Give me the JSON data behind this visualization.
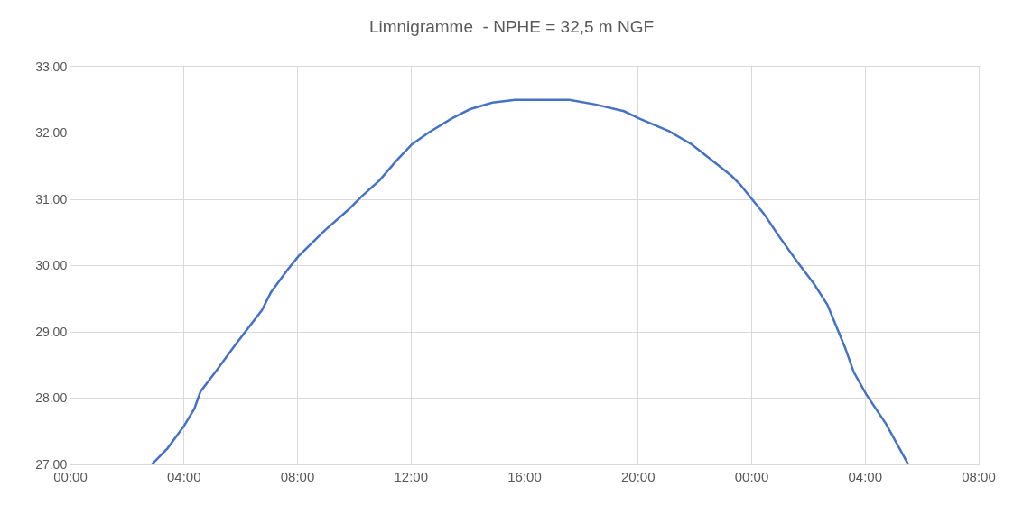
{
  "chart_data": {
    "type": "line",
    "title": "Limnigramme  - NPHE = 32,5 m NGF",
    "x": [
      "--01-01T02:52",
      "--01-01T03:25",
      "--01-01T04:00",
      "--01-01T04:22",
      "--01-01T04:35",
      "--01-01T05:10",
      "--01-01T05:48",
      "--01-01T06:45",
      "--01-01T07:04",
      "--01-01T07:38",
      "--01-01T08:02",
      "--01-01T08:59",
      "--01-01T09:47",
      "--01-01T10:15",
      "--01-01T10:54",
      "--01-01T11:30",
      "--01-01T12:02",
      "--01-01T12:38",
      "--01-01T13:26",
      "--01-01T14:05",
      "--01-01T14:52",
      "--01-01T15:40",
      "--01-01T17:35",
      "--01-01T18:30",
      "--01-01T19:30",
      "--01-01T20:02",
      "--01-01T21:05",
      "--01-01T21:53",
      "--01-01T22:41",
      "--01-01T23:18",
      "--01-01T23:36",
      "--01-02T00:02",
      "--01-02T00:26",
      "--01-02T00:58",
      "--01-02T01:36",
      "--01-02T02:11",
      "--01-02T02:40",
      "--01-02T03:17",
      "--01-02T03:36",
      "--01-02T04:02",
      "--01-02T04:44",
      "--01-02T05:31"
    ],
    "series": [
      {
        "color": "#4472c4",
        "values": [
          27.0,
          27.24,
          27.58,
          27.84,
          28.1,
          28.43,
          28.8,
          29.33,
          29.6,
          29.93,
          30.14,
          30.54,
          30.84,
          31.04,
          31.29,
          31.59,
          31.83,
          32.01,
          32.22,
          32.36,
          32.46,
          32.5,
          32.5,
          32.43,
          32.33,
          32.22,
          32.03,
          31.83,
          31.56,
          31.35,
          31.22,
          30.99,
          30.78,
          30.44,
          30.06,
          29.73,
          29.41,
          28.77,
          28.39,
          28.06,
          27.61,
          27.0
        ]
      }
    ],
    "xlim": [
      "--01-01T00:00",
      "--01-02T08:00"
    ],
    "xticks": [
      {
        "value": "--01-01T00:00",
        "label": "00:00"
      },
      {
        "value": "--01-01T04:00",
        "label": "04:00"
      },
      {
        "value": "--01-01T08:00",
        "label": "08:00"
      },
      {
        "value": "--01-01T12:00",
        "label": "12:00"
      },
      {
        "value": "--01-01T16:00",
        "label": "16:00"
      },
      {
        "value": "--01-01T20:00",
        "label": "20:00"
      },
      {
        "value": "--01-02T00:00",
        "label": "00:00"
      },
      {
        "value": "--01-02T04:00",
        "label": "04:00"
      },
      {
        "value": "--01-02T08:00",
        "label": "08:00"
      }
    ],
    "ylim": [
      27,
      33
    ],
    "yticks": [
      {
        "value": 27,
        "label": "27.00"
      },
      {
        "value": 28,
        "label": "28.00"
      },
      {
        "value": 29,
        "label": "29.00"
      },
      {
        "value": 30,
        "label": "30.00"
      },
      {
        "value": 31,
        "label": "31.00"
      },
      {
        "value": 32,
        "label": "32.00"
      },
      {
        "value": 33,
        "label": "33.00"
      }
    ],
    "grid": true,
    "marker": "none",
    "line_style": "solid"
  }
}
